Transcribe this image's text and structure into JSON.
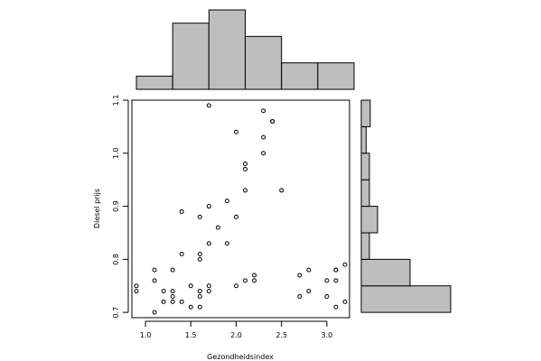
{
  "chart_data": {
    "type": "scatter",
    "xlabel": "Gezondheidsindex",
    "ylabel": "Diesel prijs",
    "xlim": [
      0.85,
      3.25
    ],
    "ylim": [
      0.69,
      1.1
    ],
    "xticks": [
      1.0,
      1.5,
      2.0,
      2.5,
      3.0
    ],
    "xtick_labels": [
      "1.0",
      "1.5",
      "2.0",
      "2.5",
      "3.0"
    ],
    "yticks": [
      0.7,
      0.8,
      0.9,
      1.0,
      1.1
    ],
    "ytick_labels": [
      "0.7",
      "0.8",
      "0.9",
      "1.0",
      "1.1"
    ],
    "points": [
      [
        0.9,
        0.75
      ],
      [
        0.9,
        0.74
      ],
      [
        1.1,
        0.78
      ],
      [
        1.1,
        0.76
      ],
      [
        1.1,
        0.7
      ],
      [
        1.2,
        0.74
      ],
      [
        1.2,
        0.72
      ],
      [
        1.3,
        0.78
      ],
      [
        1.3,
        0.74
      ],
      [
        1.3,
        0.73
      ],
      [
        1.3,
        0.72
      ],
      [
        1.4,
        0.89
      ],
      [
        1.4,
        0.81
      ],
      [
        1.4,
        0.72
      ],
      [
        1.5,
        0.75
      ],
      [
        1.5,
        0.71
      ],
      [
        1.6,
        0.88
      ],
      [
        1.6,
        0.81
      ],
      [
        1.6,
        0.8
      ],
      [
        1.6,
        0.74
      ],
      [
        1.6,
        0.73
      ],
      [
        1.6,
        0.71
      ],
      [
        1.7,
        1.09
      ],
      [
        1.7,
        0.9
      ],
      [
        1.7,
        0.83
      ],
      [
        1.7,
        0.75
      ],
      [
        1.7,
        0.74
      ],
      [
        1.8,
        0.86
      ],
      [
        1.9,
        0.91
      ],
      [
        1.9,
        0.83
      ],
      [
        2.0,
        1.04
      ],
      [
        2.0,
        0.88
      ],
      [
        2.0,
        0.75
      ],
      [
        2.1,
        0.98
      ],
      [
        2.1,
        0.97
      ],
      [
        2.1,
        0.93
      ],
      [
        2.1,
        0.76
      ],
      [
        2.2,
        0.77
      ],
      [
        2.2,
        0.76
      ],
      [
        2.3,
        1.08
      ],
      [
        2.3,
        1.03
      ],
      [
        2.3,
        1.0
      ],
      [
        2.4,
        1.06
      ],
      [
        2.4,
        1.06
      ],
      [
        2.5,
        0.93
      ],
      [
        2.7,
        0.77
      ],
      [
        2.7,
        0.73
      ],
      [
        2.8,
        0.78
      ],
      [
        2.8,
        0.74
      ],
      [
        3.0,
        0.76
      ],
      [
        3.0,
        0.73
      ],
      [
        3.1,
        0.78
      ],
      [
        3.1,
        0.78
      ],
      [
        3.1,
        0.76
      ],
      [
        3.1,
        0.71
      ],
      [
        3.2,
        0.79
      ],
      [
        3.2,
        0.72
      ]
    ],
    "x_histogram": {
      "breaks": [
        0.9,
        1.3,
        1.7,
        2.1,
        2.5,
        2.9,
        3.3
      ],
      "counts": [
        1,
        5,
        6,
        4,
        2,
        2
      ]
    },
    "y_histogram": {
      "breaks": [
        0.7,
        0.75,
        0.8,
        0.85,
        0.9,
        0.95,
        1.0,
        1.05,
        1.1
      ],
      "counts": [
        11,
        6,
        1,
        2,
        1,
        1,
        0.6,
        1.1
      ]
    }
  }
}
